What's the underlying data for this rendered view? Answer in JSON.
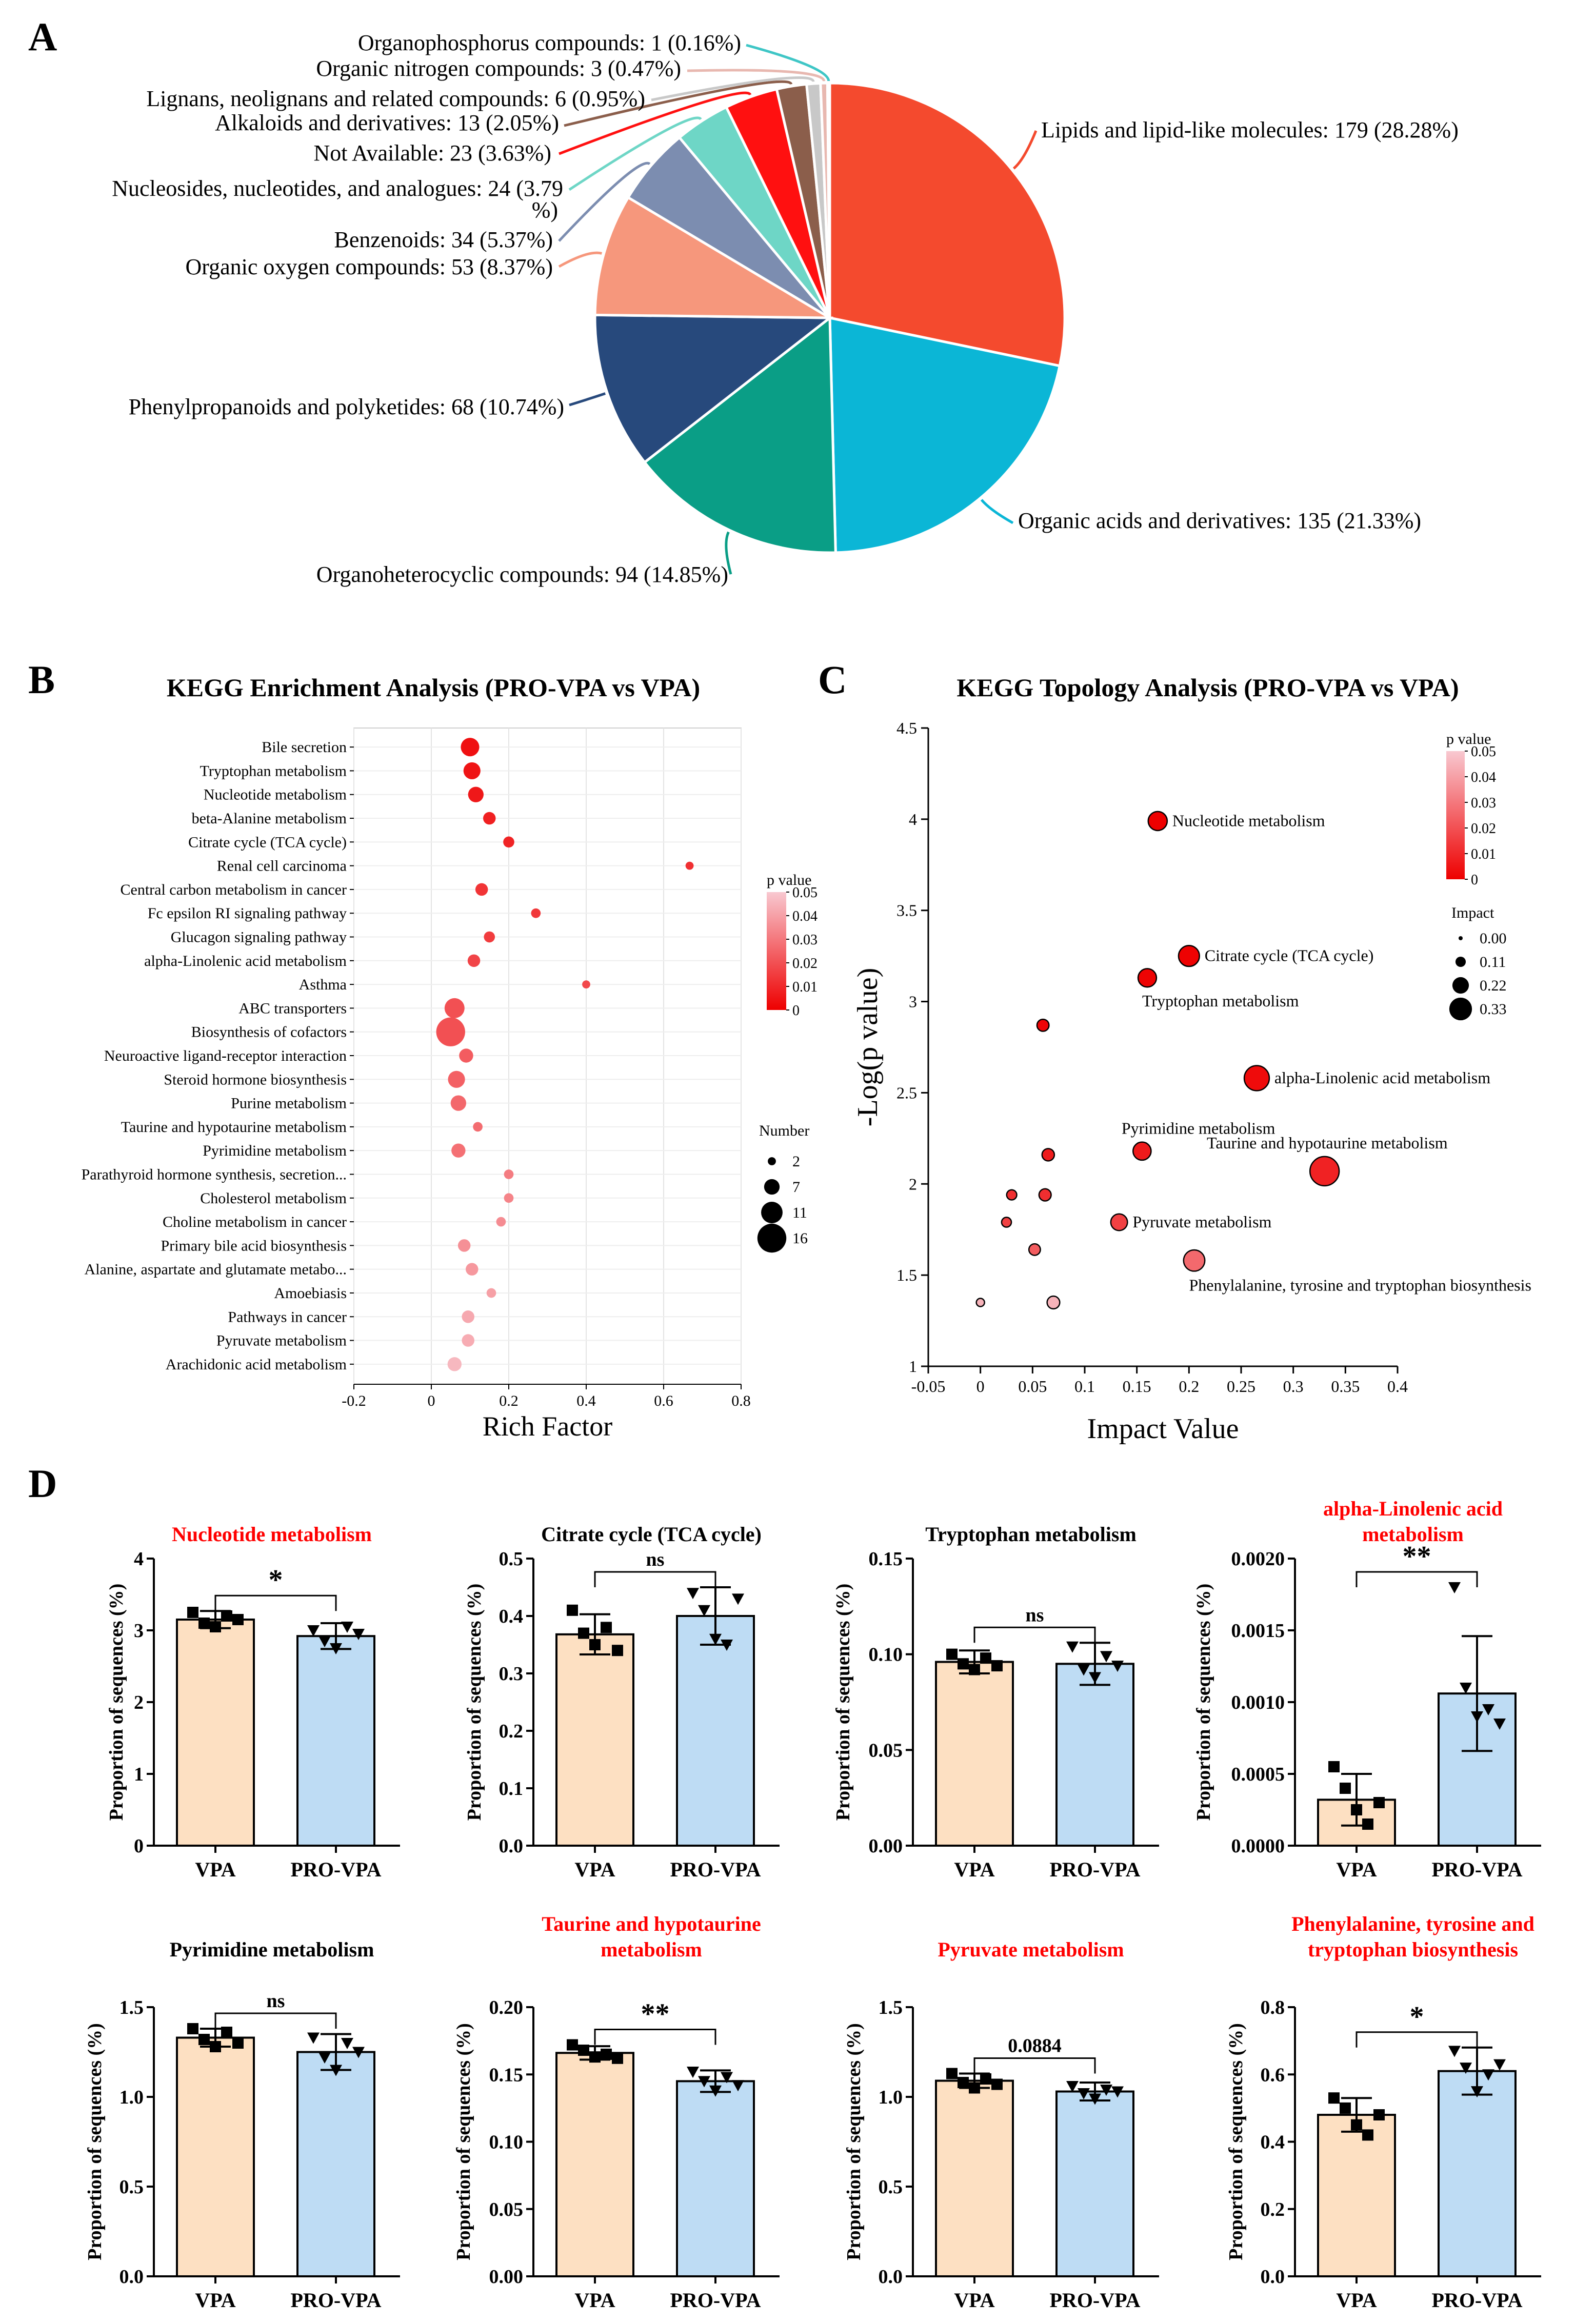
{
  "colors": {
    "dot_low": "#ee0000",
    "dot_high": "#f8c8d0",
    "vpa_fill": "#fde0c2",
    "pro_fill": "#bedcf4",
    "red_title": "#ff0000",
    "black": "#000000"
  },
  "chart_data": [
    {
      "panel": "A",
      "type": "pie",
      "title": "",
      "slices": [
        {
          "label": "Lipids and lipid-like molecules: 179 (28.28%)",
          "value": 179,
          "color": "#f44a2e"
        },
        {
          "label": "Organic acids and derivatives: 135 (21.33%)",
          "value": 135,
          "color": "#0bb6d6"
        },
        {
          "label": "Organoheterocyclic compounds: 94 (14.85%)",
          "value": 94,
          "color": "#0a9e86"
        },
        {
          "label": "Phenylpropanoids and polyketides: 68 (10.74%)",
          "value": 68,
          "color": "#27497c"
        },
        {
          "label": "Organic oxygen compounds: 53 (8.37%)",
          "value": 53,
          "color": "#f6977c"
        },
        {
          "label": "Benzenoids: 34 (5.37%)",
          "value": 34,
          "color": "#7c8db0"
        },
        {
          "label": "Nucleosides, nucleotides, and analogues: 24 (3.79|%)",
          "value": 24,
          "color": "#6ed6c6"
        },
        {
          "label": "Not Available: 23 (3.63%)",
          "value": 23,
          "color": "#ff1010"
        },
        {
          "label": "Alkaloids and derivatives: 13 (2.05%)",
          "value": 13,
          "color": "#8b5e4b"
        },
        {
          "label": "Lignans, neolignans and related compounds: 6 (0.95%)",
          "value": 6,
          "color": "#c8c8c8"
        },
        {
          "label": "Organic nitrogen compounds: 3 (0.47%)",
          "value": 3,
          "color": "#e8b8b0"
        },
        {
          "label": "Organophosphorus compounds: 1 (0.16%)",
          "value": 1,
          "color": "#3fc6c6"
        }
      ]
    },
    {
      "panel": "B",
      "type": "scatter",
      "title": "KEGG Enrichment Analysis (PRO-VPA vs VPA)",
      "xlabel": "Rich Factor",
      "ylabel": "",
      "xlim": [
        -0.2,
        0.8
      ],
      "xticks": [
        "-0.2",
        "0",
        "0.2",
        "0.4",
        "0.6",
        "0.8"
      ],
      "legend_p_title": "p value",
      "legend_p_ticks": [
        "0.05",
        "0.04",
        "0.03",
        "0.02",
        "0.01",
        "0"
      ],
      "legend_n_title": "Number",
      "legend_n_ticks": [
        "2",
        "7",
        "11",
        "16"
      ],
      "points": [
        {
          "pathway": "Bile secretion",
          "x": 0.1,
          "number": 9,
          "p": 0.004
        },
        {
          "pathway": "Tryptophan metabolism",
          "x": 0.105,
          "number": 8,
          "p": 0.005
        },
        {
          "pathway": "Nucleotide metabolism",
          "x": 0.115,
          "number": 7,
          "p": 0.006
        },
        {
          "pathway": "beta-Alanine metabolism",
          "x": 0.15,
          "number": 5,
          "p": 0.008
        },
        {
          "pathway": "Citrate cycle (TCA cycle)",
          "x": 0.2,
          "number": 4,
          "p": 0.009
        },
        {
          "pathway": "Renal cell carcinoma",
          "x": 0.667,
          "number": 2,
          "p": 0.012
        },
        {
          "pathway": "Central carbon metabolism in cancer",
          "x": 0.13,
          "number": 5,
          "p": 0.013
        },
        {
          "pathway": "Fc epsilon RI signaling pathway",
          "x": 0.27,
          "number": 3,
          "p": 0.014
        },
        {
          "pathway": "Glucagon signaling pathway",
          "x": 0.15,
          "number": 4,
          "p": 0.015
        },
        {
          "pathway": "alpha-Linolenic acid metabolism",
          "x": 0.11,
          "number": 5,
          "p": 0.017
        },
        {
          "pathway": "Asthma",
          "x": 0.4,
          "number": 2,
          "p": 0.018
        },
        {
          "pathway": "ABC transporters",
          "x": 0.06,
          "number": 10,
          "p": 0.02
        },
        {
          "pathway": "Biosynthesis of cofactors",
          "x": 0.05,
          "number": 16,
          "p": 0.02
        },
        {
          "pathway": "Neuroactive ligand-receptor interaction",
          "x": 0.09,
          "number": 6,
          "p": 0.023
        },
        {
          "pathway": "Steroid hormone biosynthesis",
          "x": 0.065,
          "number": 8,
          "p": 0.024
        },
        {
          "pathway": "Purine metabolism",
          "x": 0.07,
          "number": 7,
          "p": 0.026
        },
        {
          "pathway": "Taurine and hypotaurine metabolism",
          "x": 0.12,
          "number": 3,
          "p": 0.027
        },
        {
          "pathway": "Pyrimidine metabolism",
          "x": 0.07,
          "number": 6,
          "p": 0.028
        },
        {
          "pathway": "Parathyroid hormone synthesis, secretion...",
          "x": 0.2,
          "number": 3,
          "p": 0.031
        },
        {
          "pathway": "Cholesterol metabolism",
          "x": 0.2,
          "number": 3,
          "p": 0.033
        },
        {
          "pathway": "Choline metabolism in cancer",
          "x": 0.18,
          "number": 3,
          "p": 0.035
        },
        {
          "pathway": "Primary bile acid biosynthesis",
          "x": 0.085,
          "number": 5,
          "p": 0.036
        },
        {
          "pathway": "Alanine, aspartate and glutamate metabo...",
          "x": 0.105,
          "number": 5,
          "p": 0.038
        },
        {
          "pathway": "Amoebiasis",
          "x": 0.155,
          "number": 3,
          "p": 0.04
        },
        {
          "pathway": "Pathways in cancer",
          "x": 0.095,
          "number": 5,
          "p": 0.042
        },
        {
          "pathway": "Pyruvate metabolism",
          "x": 0.095,
          "number": 5,
          "p": 0.043
        },
        {
          "pathway": "Arachidonic acid metabolism",
          "x": 0.06,
          "number": 6,
          "p": 0.046
        }
      ]
    },
    {
      "panel": "C",
      "type": "scatter",
      "title": "KEGG Topology Analysis (PRO-VPA vs VPA)",
      "xlabel": "Impact Value",
      "ylabel": "-Log(p value)",
      "xlim": [
        -0.05,
        0.4
      ],
      "ylim": [
        1,
        4.5
      ],
      "xticks": [
        "-0.05",
        "0",
        "0.05",
        "0.1",
        "0.15",
        "0.2",
        "0.25",
        "0.3",
        "0.35",
        "0.4"
      ],
      "yticks": [
        "1",
        "1.5",
        "2",
        "2.5",
        "3",
        "3.5",
        "4",
        "4.5"
      ],
      "legend_p_title": "p value",
      "legend_p_ticks": [
        "0.05",
        "0.04",
        "0.03",
        "0.02",
        "0.01",
        "0"
      ],
      "legend_i_title": "Impact",
      "legend_i_ticks": [
        "0.00",
        "0.11",
        "0.22",
        "0.33"
      ],
      "points": [
        {
          "x": 0.17,
          "y": 3.99,
          "impact": 0.17,
          "label": "Nucleotide metabolism",
          "label_pos": "right"
        },
        {
          "x": 0.2,
          "y": 3.25,
          "impact": 0.2,
          "label": "Citrate cycle (TCA cycle)",
          "label_pos": "right"
        },
        {
          "x": 0.16,
          "y": 3.13,
          "impact": 0.16,
          "label": "Tryptophan metabolism",
          "label_pos": "below"
        },
        {
          "x": 0.06,
          "y": 2.87,
          "impact": 0.06,
          "label": ""
        },
        {
          "x": 0.265,
          "y": 2.58,
          "impact": 0.265,
          "label": "alpha-Linolenic acid metabolism",
          "label_pos": "right"
        },
        {
          "x": 0.155,
          "y": 2.18,
          "impact": 0.155,
          "label": "Pyrimidine metabolism",
          "label_pos": "above"
        },
        {
          "x": 0.33,
          "y": 2.07,
          "impact": 0.33,
          "label": "Taurine and hypotaurine metabolism",
          "label_pos": "above-left"
        },
        {
          "x": 0.065,
          "y": 2.16,
          "impact": 0.065,
          "label": ""
        },
        {
          "x": 0.03,
          "y": 1.94,
          "impact": 0.03,
          "label": ""
        },
        {
          "x": 0.062,
          "y": 1.94,
          "impact": 0.062,
          "label": ""
        },
        {
          "x": 0.025,
          "y": 1.79,
          "impact": 0.025,
          "label": ""
        },
        {
          "x": 0.133,
          "y": 1.79,
          "impact": 0.133,
          "label": "Pyruvate metabolism",
          "label_pos": "right"
        },
        {
          "x": 0.052,
          "y": 1.64,
          "impact": 0.052,
          "label": ""
        },
        {
          "x": 0.205,
          "y": 1.58,
          "impact": 0.205,
          "label": "Phenylalanine, tyrosine and tryptophan biosynthesis",
          "label_pos": "below"
        },
        {
          "x": 0.0,
          "y": 1.35,
          "impact": 0.0,
          "label": ""
        },
        {
          "x": 0.07,
          "y": 1.35,
          "impact": 0.07,
          "label": ""
        }
      ]
    },
    {
      "panel": "D",
      "type": "bar",
      "title": "Nucleotide metabolism",
      "title_color": "#ff0000",
      "ylabel": "Proportion of sequences (%)",
      "categories": [
        "VPA",
        "PRO-VPA"
      ],
      "means": [
        3.15,
        2.92
      ],
      "sd": [
        0.12,
        0.18
      ],
      "ylim": [
        0,
        4
      ],
      "yticks": [
        "0",
        "1",
        "2",
        "3",
        "4"
      ],
      "points": [
        [
          3.25,
          3.1,
          3.05,
          3.2,
          3.15
        ],
        [
          3.0,
          2.85,
          2.75,
          3.05,
          2.95
        ]
      ],
      "sig": "*"
    },
    {
      "panel": "D",
      "type": "bar",
      "title": "Citrate cycle (TCA cycle)",
      "title_color": "#000000",
      "ylabel": "Proportion of sequences (%)",
      "categories": [
        "VPA",
        "PRO-VPA"
      ],
      "means": [
        0.368,
        0.4
      ],
      "sd": [
        0.035,
        0.05
      ],
      "ylim": [
        0,
        0.5
      ],
      "yticks": [
        "0.0",
        "0.1",
        "0.2",
        "0.3",
        "0.4",
        "0.5"
      ],
      "points": [
        [
          0.41,
          0.37,
          0.35,
          0.38,
          0.34
        ],
        [
          0.44,
          0.41,
          0.36,
          0.35,
          0.43
        ]
      ],
      "sig": "ns"
    },
    {
      "panel": "D",
      "type": "bar",
      "title": "Tryptophan metabolism",
      "title_color": "#000000",
      "ylabel": "Proportion of sequences (%)",
      "categories": [
        "VPA",
        "PRO-VPA"
      ],
      "means": [
        0.096,
        0.095
      ],
      "sd": [
        0.006,
        0.011
      ],
      "ylim": [
        0,
        0.15
      ],
      "yticks": [
        "0.00",
        "0.05",
        "0.10",
        "0.15"
      ],
      "points": [
        [
          0.1,
          0.095,
          0.092,
          0.098,
          0.094
        ],
        [
          0.104,
          0.092,
          0.088,
          0.099,
          0.094
        ]
      ],
      "sig": "ns"
    },
    {
      "panel": "D",
      "type": "bar",
      "title": "alpha-Linolenic acid metabolism",
      "title_color": "#ff0000",
      "ylabel": "Proportion of sequences (%)",
      "categories": [
        "VPA",
        "PRO-VPA"
      ],
      "means": [
        0.00032,
        0.00106
      ],
      "sd": [
        0.00018,
        0.0004
      ],
      "ylim": [
        0,
        0.002
      ],
      "yticks": [
        "0.0000",
        "0.0005",
        "0.0010",
        "0.0015",
        "0.0020"
      ],
      "points": [
        [
          0.00055,
          0.0004,
          0.00025,
          0.00015,
          0.0003
        ],
        [
          0.0018,
          0.0011,
          0.0009,
          0.00095,
          0.00085
        ]
      ],
      "sig": "**"
    },
    {
      "panel": "D",
      "type": "bar",
      "title": "Pyrimidine metabolism",
      "title_color": "#000000",
      "ylabel": "Proportion of sequences (%)",
      "categories": [
        "VPA",
        "PRO-VPA"
      ],
      "means": [
        1.33,
        1.25
      ],
      "sd": [
        0.05,
        0.1
      ],
      "ylim": [
        0,
        1.5
      ],
      "yticks": [
        "0.0",
        "0.5",
        "1.0",
        "1.5"
      ],
      "points": [
        [
          1.38,
          1.32,
          1.28,
          1.36,
          1.3
        ],
        [
          1.33,
          1.22,
          1.15,
          1.3,
          1.25
        ]
      ],
      "sig": "ns"
    },
    {
      "panel": "D",
      "type": "bar",
      "title": "Taurine and hypotaurine metabolism",
      "title_color": "#ff0000",
      "ylabel": "Proportion of sequences (%)",
      "categories": [
        "VPA",
        "PRO-VPA"
      ],
      "means": [
        0.166,
        0.145
      ],
      "sd": [
        0.005,
        0.008
      ],
      "ylim": [
        0,
        0.2
      ],
      "yticks": [
        "0.00",
        "0.05",
        "0.10",
        "0.15",
        "0.20"
      ],
      "points": [
        [
          0.172,
          0.168,
          0.163,
          0.165,
          0.162
        ],
        [
          0.152,
          0.145,
          0.138,
          0.148,
          0.142
        ]
      ],
      "sig": "**"
    },
    {
      "panel": "D",
      "type": "bar",
      "title": "Pyruvate metabolism",
      "title_color": "#ff0000",
      "ylabel": "Proportion of sequences (%)",
      "categories": [
        "VPA",
        "PRO-VPA"
      ],
      "means": [
        1.09,
        1.03
      ],
      "sd": [
        0.04,
        0.05
      ],
      "ylim": [
        0,
        1.5
      ],
      "yticks": [
        "0.0",
        "0.5",
        "1.0",
        "1.5"
      ],
      "points": [
        [
          1.13,
          1.08,
          1.05,
          1.1,
          1.07
        ],
        [
          1.06,
          1.02,
          0.99,
          1.04,
          1.03
        ]
      ],
      "sig": "0.0884"
    },
    {
      "panel": "D",
      "type": "bar",
      "title": "Phenylalanine, tyrosine and tryptophan biosynthesis",
      "title_color": "#ff0000",
      "ylabel": "Proportion of sequences (%)",
      "categories": [
        "VPA",
        "PRO-VPA"
      ],
      "means": [
        0.48,
        0.61
      ],
      "sd": [
        0.05,
        0.07
      ],
      "ylim": [
        0,
        0.8
      ],
      "yticks": [
        "0.0",
        "0.2",
        "0.4",
        "0.6",
        "0.8"
      ],
      "points": [
        [
          0.53,
          0.5,
          0.45,
          0.42,
          0.48
        ],
        [
          0.67,
          0.62,
          0.55,
          0.6,
          0.63
        ]
      ],
      "sig": "*"
    }
  ],
  "panels": {
    "a": "A",
    "b": "B",
    "c": "C",
    "d": "D"
  }
}
